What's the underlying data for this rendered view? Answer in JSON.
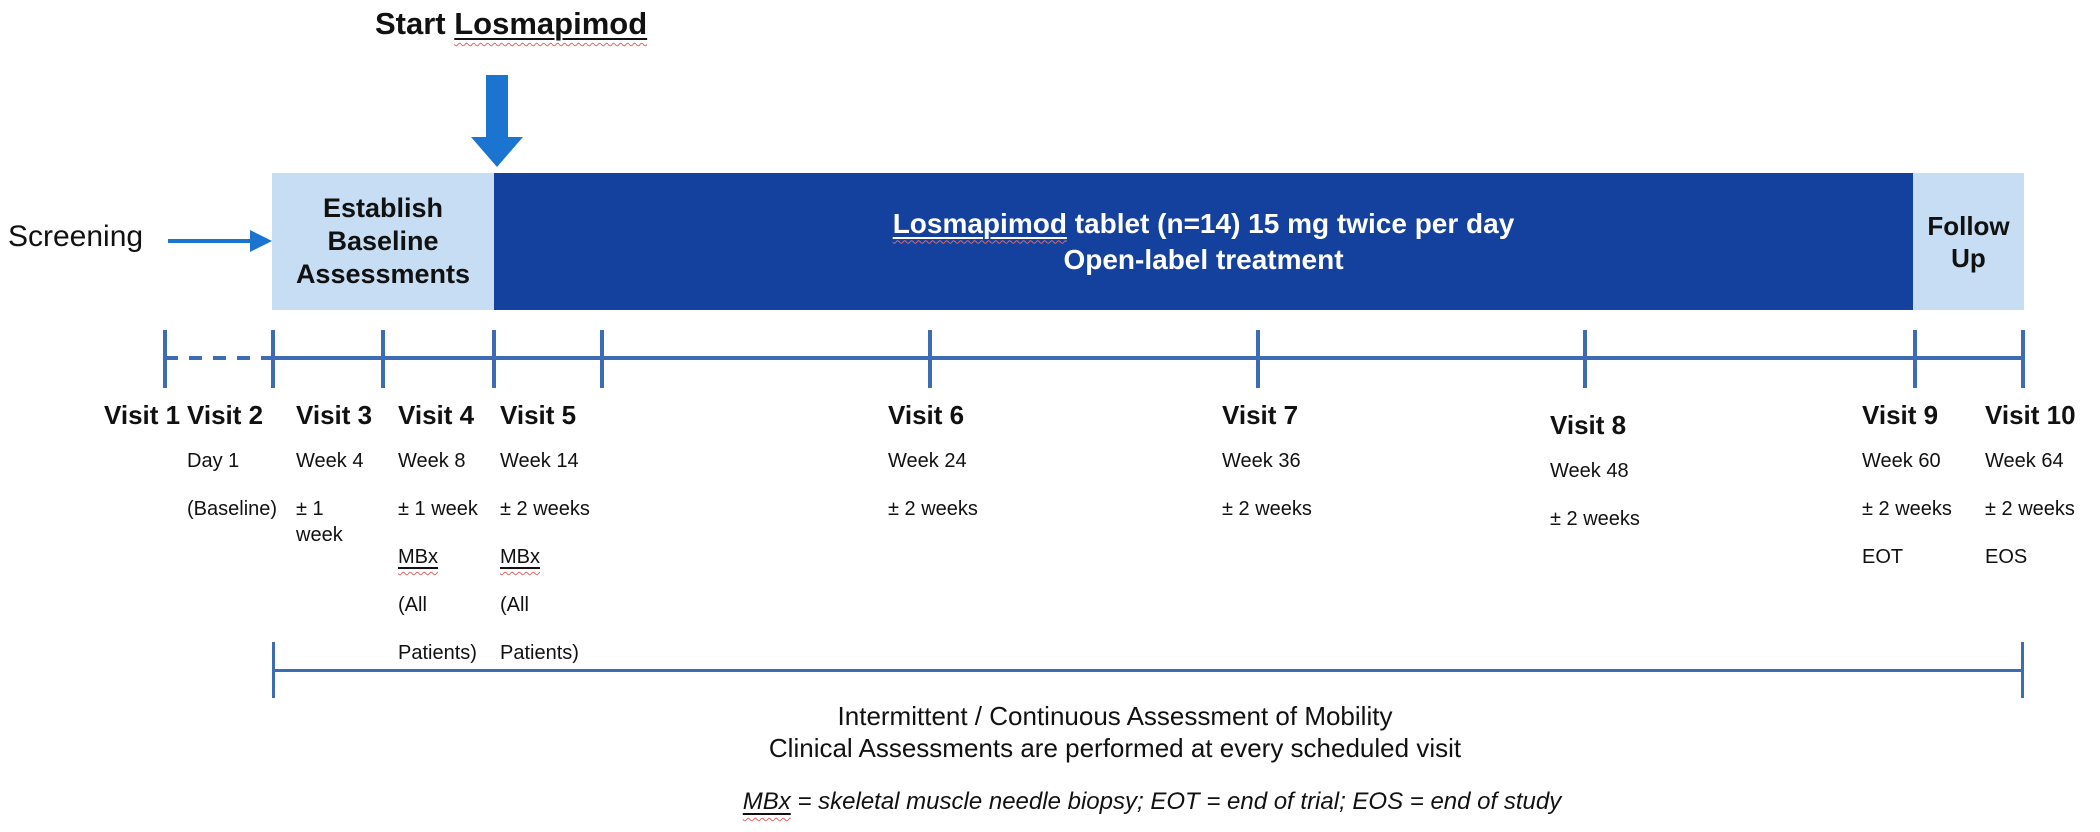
{
  "title": {
    "prefix": "Start ",
    "drug": "Losmapimod"
  },
  "screening": {
    "label": "Screening"
  },
  "bar": {
    "baseline_label": "Establish Baseline Assessments",
    "treatment_line1_drug": "Losmapimod",
    "treatment_line1_rest": " tablet (n=14) 15 mg twice per day",
    "treatment_line2": "Open-label treatment",
    "followup_label": "Follow Up"
  },
  "visits": [
    {
      "name": "Visit 1",
      "lines": []
    },
    {
      "name": "Visit 2",
      "lines": [
        "Day 1",
        "(Baseline)"
      ]
    },
    {
      "name": "Visit 3",
      "lines": [
        "Week 4",
        "± 1 week"
      ]
    },
    {
      "name": "Visit 4",
      "lines": [
        "Week 8",
        "± 1 week",
        "MBx",
        "(All",
        "Patients)"
      ]
    },
    {
      "name": "Visit 5",
      "lines": [
        "Week 14",
        "± 2 weeks",
        "MBx",
        "(All",
        "Patients)"
      ]
    },
    {
      "name": "Visit 6",
      "lines": [
        "Week 24",
        "± 2 weeks"
      ]
    },
    {
      "name": "Visit 7",
      "lines": [
        "Week 36",
        "± 2 weeks"
      ]
    },
    {
      "name": "Visit 8",
      "lines": [
        "Week 48",
        "± 2 weeks"
      ]
    },
    {
      "name": "Visit 9",
      "lines": [
        "Week 60",
        "± 2 weeks",
        "EOT"
      ]
    },
    {
      "name": "Visit 10",
      "lines": [
        "Week 64",
        "± 2 weeks",
        "EOS"
      ]
    }
  ],
  "assessment": {
    "line1": "Intermittent / Continuous Assessment of Mobility",
    "line2": "Clinical Assessments are performed at every scheduled visit"
  },
  "footnote": {
    "abbr": "MBx",
    "rest": " = skeletal muscle needle biopsy; EOT = end of trial; EOS = end of study"
  },
  "colors": {
    "dark_blue": "#15419E",
    "light_blue": "#C7DDF4",
    "arrow_blue": "#1B75D0",
    "line_blue": "#3E6CB4",
    "squiggle": "#E06666",
    "text": "#111111"
  }
}
